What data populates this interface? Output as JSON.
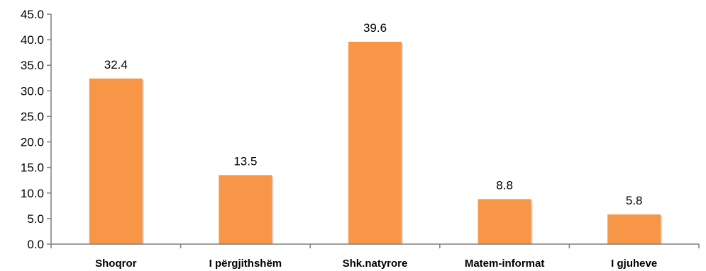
{
  "chart_data": {
    "type": "bar",
    "title": "",
    "xlabel": "",
    "ylabel": "",
    "categories": [
      "Shoqror",
      "I përgjithshëm",
      "Shk.natyrore",
      "Matem-informat",
      "I gjuheve"
    ],
    "values": [
      32.4,
      13.5,
      39.6,
      8.8,
      5.8
    ],
    "data_labels": [
      "32.4",
      "13.5",
      "39.6",
      "8.8",
      "5.8"
    ],
    "ylim": [
      0,
      45
    ],
    "yticks": [
      "0.0",
      "5.0",
      "10.0",
      "15.0",
      "20.0",
      "25.0",
      "30.0",
      "35.0",
      "40.0",
      "45.0"
    ],
    "grid": false,
    "legend": "none",
    "colors": {
      "bar": "#F79646",
      "axis": "#7F7F7F",
      "text": "#000000"
    }
  }
}
